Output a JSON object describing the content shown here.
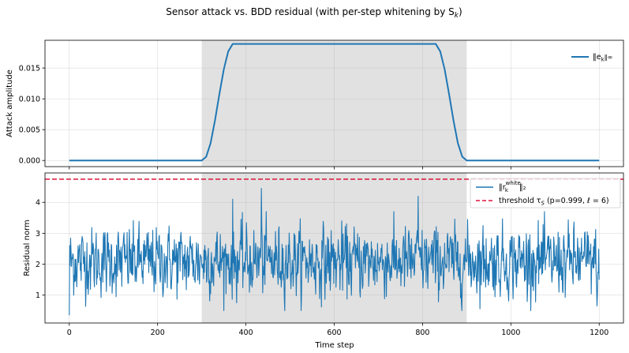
{
  "figure": {
    "suptitle": "Sensor attack vs. BDD residual (with per-step whitening by S",
    "suptitle_sub": "k",
    "suptitle_end": ")"
  },
  "chart_data": [
    {
      "type": "line",
      "panel": "top",
      "xlabel": "",
      "ylabel": "Attack amplitude",
      "xlim": [
        -55,
        1255
      ],
      "ylim": [
        -0.001,
        0.0195
      ],
      "yticks": [
        0.0,
        0.005,
        0.01,
        0.015
      ],
      "ytick_labels": [
        "0.000",
        "0.005",
        "0.010",
        "0.015"
      ],
      "xticks": [
        0,
        200,
        400,
        600,
        800,
        1000,
        1200
      ],
      "grid": true,
      "legend_position": "upper right",
      "shaded_span": [
        300,
        900
      ],
      "colors": {
        "series": "#1f77b4",
        "span": "#e1e1e1"
      },
      "series": [
        {
          "name": "‖e_k‖∞",
          "legend_main": "‖e",
          "legend_sub": "k",
          "legend_end": "‖∞",
          "x": [
            0,
            300,
            310,
            320,
            330,
            340,
            350,
            360,
            370,
            830,
            840,
            850,
            860,
            870,
            880,
            890,
            900,
            1200
          ],
          "y": [
            0.0,
            0.0,
            0.0006,
            0.0028,
            0.0065,
            0.0108,
            0.0148,
            0.0177,
            0.0189,
            0.0189,
            0.0177,
            0.0148,
            0.0108,
            0.0065,
            0.0028,
            0.0006,
            0.0,
            0.0
          ]
        }
      ]
    },
    {
      "type": "line",
      "panel": "bottom",
      "xlabel": "Time step",
      "ylabel": "Residual norm",
      "xlim": [
        -55,
        1255
      ],
      "ylim": [
        0.1,
        4.95
      ],
      "yticks": [
        1,
        2,
        3,
        4
      ],
      "ytick_labels": [
        "1",
        "2",
        "3",
        "4"
      ],
      "xticks": [
        0,
        200,
        400,
        600,
        800,
        1000,
        1200
      ],
      "xtick_labels": [
        "0",
        "200",
        "400",
        "600",
        "800",
        "1000",
        "1200"
      ],
      "grid": true,
      "legend_position": "upper right",
      "shaded_span": [
        300,
        900
      ],
      "colors": {
        "series": "#1f77b4",
        "threshold": "#dc143c",
        "span": "#e1e1e1"
      },
      "series": [
        {
          "name": "‖r_k^white‖₂",
          "legend_main": "‖r",
          "legend_sub": "k",
          "legend_sup": "white",
          "legend_end": "‖₂",
          "n_points": 1201,
          "x_range": [
            0,
            1200
          ],
          "y_range": [
            0.35,
            4.45
          ],
          "y_typical_range": [
            1.2,
            3.2
          ],
          "y_mean": 2.1,
          "y_first": 0.35,
          "y_last": 1.5,
          "notable_points": [
            [
              0,
              0.35
            ],
            [
              370,
              4.1
            ],
            [
              435,
              4.45
            ],
            [
              790,
              4.2
            ],
            [
              1195,
              0.65
            ],
            [
              1200,
              1.5
            ]
          ]
        },
        {
          "name": "threshold τS (p=0.999, ℓ=6)",
          "legend_main": "threshold τ",
          "legend_sub": "S",
          "legend_end": " (p=0.999, ℓ = 6)",
          "style": "dashed",
          "y_constant": 4.75
        }
      ]
    }
  ]
}
